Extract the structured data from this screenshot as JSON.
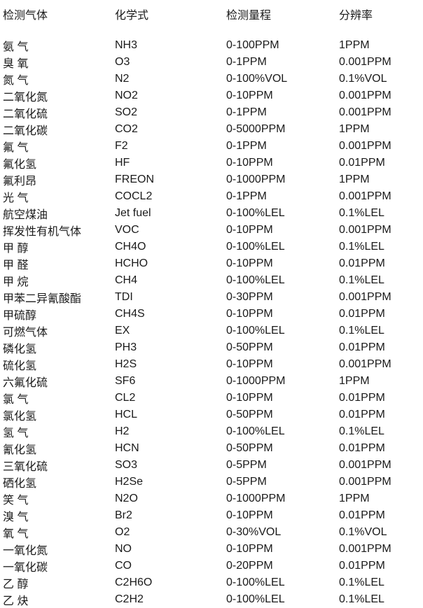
{
  "table": {
    "text_color": "#1a1a1a",
    "background_color": "#ffffff",
    "headers": [
      "检测气体",
      "化学式",
      "检测量程",
      "分辨率"
    ],
    "rows": [
      [
        "氨 气",
        "NH3",
        "0-100PPM",
        "1PPM"
      ],
      [
        "臭 氧",
        "O3",
        "0-1PPM",
        "0.001PPM"
      ],
      [
        "氮 气",
        "N2",
        "0-100%VOL",
        "0.1%VOL"
      ],
      [
        "二氧化氮",
        "NO2",
        "0-10PPM",
        "0.001PPM"
      ],
      [
        "二氧化硫",
        "SO2",
        "0-1PPM",
        "0.001PPM"
      ],
      [
        "二氧化碳",
        "CO2",
        "0-5000PPM",
        "1PPM"
      ],
      [
        "氟 气",
        "F2",
        "0-1PPM",
        "0.001PPM"
      ],
      [
        "氟化氢",
        "HF",
        "0-10PPM",
        "0.01PPM"
      ],
      [
        "氟利昂",
        "FREON",
        "0-1000PPM",
        "1PPM"
      ],
      [
        "光 气",
        "COCL2",
        "0-1PPM",
        "0.001PPM"
      ],
      [
        "航空煤油",
        "Jet fuel",
        "0-100%LEL",
        "0.1%LEL"
      ],
      [
        "挥发性有机气体",
        "VOC",
        "0-10PPM",
        "0.001PPM"
      ],
      [
        "甲 醇",
        "CH4O",
        "0-100%LEL",
        "0.1%LEL"
      ],
      [
        "甲 醛",
        "HCHO",
        "0-10PPM",
        "0.01PPM"
      ],
      [
        "甲 烷",
        "CH4",
        "0-100%LEL",
        "0.1%LEL"
      ],
      [
        "甲苯二异氰酸酯",
        "TDI",
        "0-30PPM",
        "0.001PPM"
      ],
      [
        "甲硫醇",
        "CH4S",
        "0-10PPM",
        "0.01PPM"
      ],
      [
        "可燃气体",
        "EX",
        "0-100%LEL",
        "0.1%LEL"
      ],
      [
        "磷化氢",
        "PH3",
        "0-50PPM",
        "0.01PPM"
      ],
      [
        "硫化氢",
        "H2S",
        "0-10PPM",
        "0.001PPM"
      ],
      [
        "六氟化硫",
        "SF6",
        "0-1000PPM",
        "1PPM"
      ],
      [
        "氯 气",
        "CL2",
        "0-10PPM",
        "0.01PPM"
      ],
      [
        "氯化氢",
        "HCL",
        "0-50PPM",
        "0.01PPM"
      ],
      [
        "氢 气",
        "H2",
        "0-100%LEL",
        "0.1%LEL"
      ],
      [
        "氰化氢",
        "HCN",
        "0-50PPM",
        "0.01PPM"
      ],
      [
        "三氧化硫",
        "SO3",
        "0-5PPM",
        "0.001PPM"
      ],
      [
        "硒化氢",
        "H2Se",
        "0-5PPM",
        "0.001PPM"
      ],
      [
        "笑 气",
        "N2O",
        "0-1000PPM",
        "1PPM"
      ],
      [
        "溴 气",
        "Br2",
        "0-10PPM",
        "0.01PPM"
      ],
      [
        "氧 气",
        "O2",
        "0-30%VOL",
        "0.1%VOL"
      ],
      [
        "一氧化氮",
        "NO",
        "0-10PPM",
        "0.001PPM"
      ],
      [
        "一氧化碳",
        "CO",
        "0-20PPM",
        "0.01PPM"
      ],
      [
        "乙 醇",
        "C2H6O",
        "0-100%LEL",
        "0.1%LEL"
      ],
      [
        "乙 炔",
        "C2H2",
        "0-100%LEL",
        "0.1%LEL"
      ]
    ]
  }
}
